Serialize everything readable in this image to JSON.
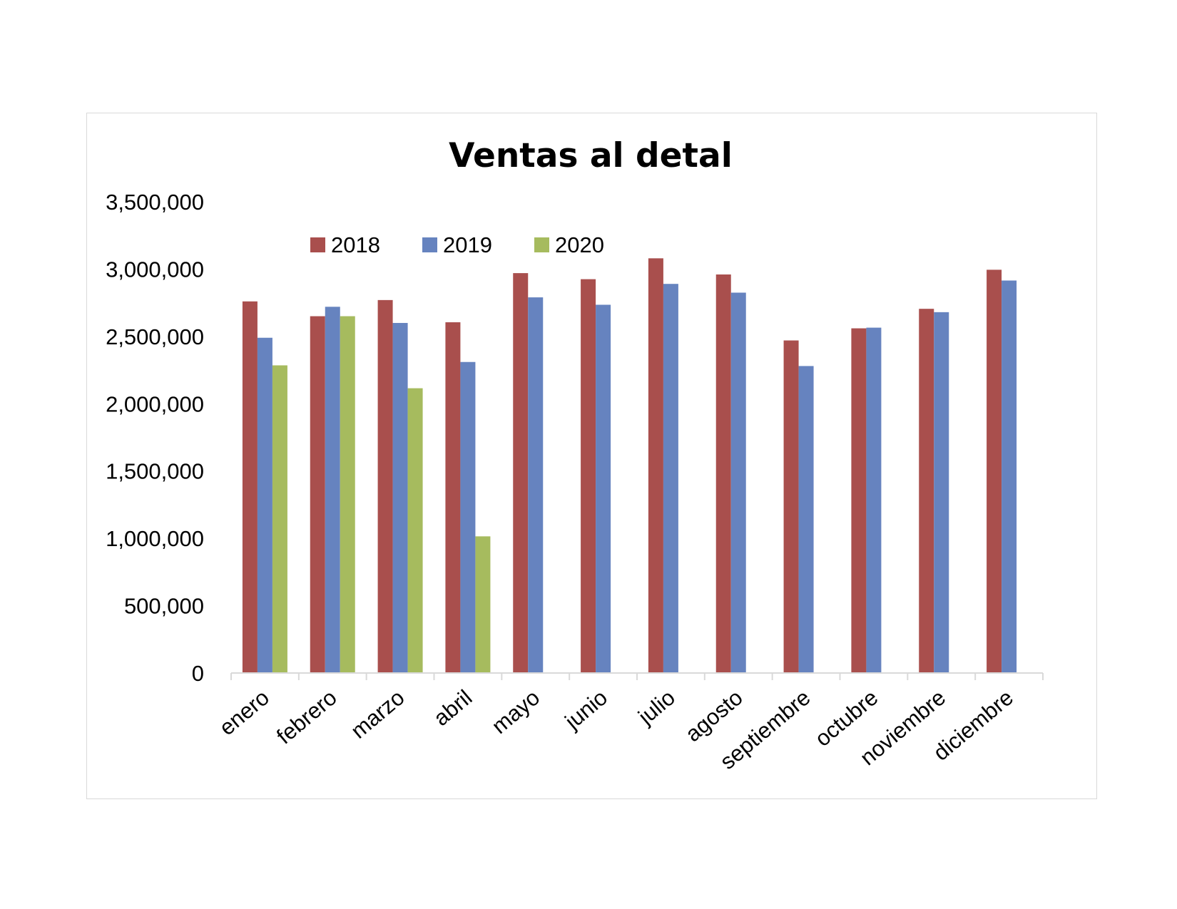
{
  "chart_data": {
    "type": "bar",
    "title": "Ventas al detal",
    "xlabel": "",
    "ylabel": "",
    "ylim": [
      0,
      3500000
    ],
    "yticks": [
      0,
      500000,
      1000000,
      1500000,
      2000000,
      2500000,
      3000000,
      3500000
    ],
    "ytick_labels": [
      "0",
      "500,000",
      "1,000,000",
      "1,500,000",
      "2,000,000",
      "2,500,000",
      "3,000,000",
      "3,500,000"
    ],
    "grid": false,
    "legend_position": "top",
    "categories": [
      "enero",
      "febrero",
      "marzo",
      "abril",
      "mayo",
      "junio",
      "julio",
      "agosto",
      "septiembre",
      "octubre",
      "noviembre",
      "diciembre"
    ],
    "series": [
      {
        "name": "2018",
        "color": "#A94F4D",
        "values": [
          2760000,
          2650000,
          2770000,
          2605000,
          2970000,
          2925000,
          3080000,
          2960000,
          2470000,
          2560000,
          2705000,
          2995000
        ]
      },
      {
        "name": "2019",
        "color": "#6683BF",
        "values": [
          2490000,
          2720000,
          2600000,
          2310000,
          2790000,
          2735000,
          2890000,
          2825000,
          2280000,
          2565000,
          2680000,
          2915000
        ]
      },
      {
        "name": "2020",
        "color": "#A6BB5E",
        "values": [
          2285000,
          2650000,
          2115000,
          1015000,
          null,
          null,
          null,
          null,
          null,
          null,
          null,
          null
        ]
      }
    ]
  }
}
